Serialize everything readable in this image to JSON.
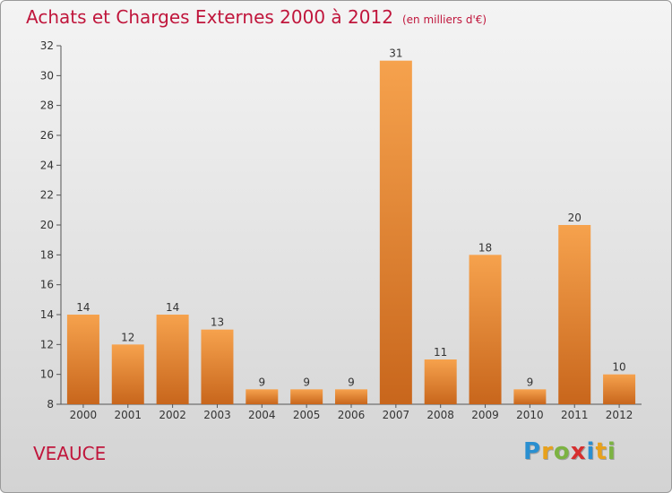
{
  "title": "Achats et Charges Externes 2000 à 2012",
  "subtitle": "(en milliers d'€)",
  "town": "VEAUCE",
  "logo": {
    "text": "Proxiti",
    "letters": [
      {
        "char": "P",
        "color": "#2a8fd0"
      },
      {
        "char": "r",
        "color": "#e8a11c"
      },
      {
        "char": "o",
        "color": "#7cb342"
      },
      {
        "char": "x",
        "color": "#d62f2f"
      },
      {
        "char": "i",
        "color": "#2a8fd0"
      },
      {
        "char": "t",
        "color": "#e8a11c"
      },
      {
        "char": "i",
        "color": "#7cb342"
      }
    ]
  },
  "colors": {
    "title": "#c0163c",
    "bar_light": "#f6a24d",
    "bar_dark": "#c8661c",
    "axis": "#555555"
  },
  "chart_data": {
    "type": "bar",
    "title": "Achats et Charges Externes 2000 à 2012",
    "subtitle": "(en milliers d'€)",
    "categories": [
      "2000",
      "2001",
      "2002",
      "2003",
      "2004",
      "2005",
      "2006",
      "2007",
      "2008",
      "2009",
      "2010",
      "2011",
      "2012"
    ],
    "values": [
      14,
      12,
      14,
      13,
      9,
      9,
      9,
      31,
      11,
      18,
      9,
      20,
      10
    ],
    "ylim": [
      8,
      32
    ],
    "yticks": [
      8,
      10,
      12,
      14,
      16,
      18,
      20,
      22,
      24,
      26,
      28,
      30,
      32
    ],
    "xlabel": "",
    "ylabel": "",
    "grid": false,
    "legend": "none"
  }
}
